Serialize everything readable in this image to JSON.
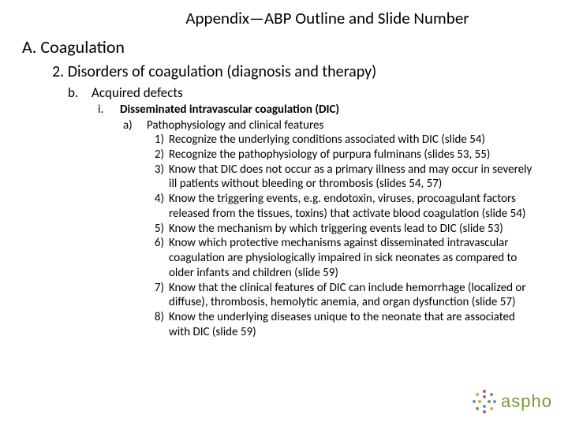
{
  "title": "Appendix—ABP Outline and Slide Number",
  "A": {
    "label": "A.",
    "text": "Coagulation"
  },
  "L2": {
    "label": "2.",
    "text": "Disorders of coagulation (diagnosis and therapy)"
  },
  "Lb": {
    "label": "b.",
    "text": "Acquired defects"
  },
  "Li": {
    "label": "i.",
    "text": "Disseminated intravascular coagulation (DIC)"
  },
  "La2": {
    "label": "a)",
    "text": "Pathophysiology and clinical features"
  },
  "items": [
    {
      "n": "1)",
      "t": "Recognize the underlying conditions associated with DIC (slide 54)"
    },
    {
      "n": "2)",
      "t": "Recognize the pathophysiology of purpura fulminans (slides 53, 55)"
    },
    {
      "n": "3)",
      "t": "Know that DIC does not occur as a primary illness and may occur in severely ill patients without bleeding or thrombosis (slides 54, 57)"
    },
    {
      "n": "4)",
      "t": "Know the triggering events, e.g. endotoxin, viruses, procoagulant factors released from the tissues, toxins) that activate blood coagulation (slide 54)"
    },
    {
      "n": "5)",
      "t": "Know the mechanism by which triggering events lead to DIC (slide 53)"
    },
    {
      "n": "6)",
      "t": "Know which protective mechanisms against disseminated intravascular coagulation are physiologically impaired in sick neonates as compared to older infants and children (slide 59)"
    },
    {
      "n": "7)",
      "t": "Know that the clinical features of DIC can include hemorrhage (localized or diffuse), thrombosis, hemolytic anemia, and organ dysfunction (slide 57)"
    },
    {
      "n": "8)",
      "t": "Know the underlying diseases unique to the neonate that are associated with DIC (slide 59)"
    }
  ],
  "logo": {
    "text": "aspho",
    "text_color": "#7a9a3e",
    "dot_colors": [
      "#c94f7c",
      "#7a9a3e",
      "#5b9bd5",
      "#e8a33d",
      "#c94f7c",
      "#7a9a3e",
      "#5b9bd5",
      "#e8a33d",
      "#c94f7c",
      "#7a9a3e",
      "#5b9bd5",
      "#e8a33d"
    ]
  },
  "colors": {
    "background": "#ffffff",
    "text": "#000000"
  },
  "typography": {
    "title_size": 21,
    "h1_size": 22,
    "h2_size": 20,
    "h3_size": 17,
    "h4_size": 15,
    "body_size": 15
  }
}
